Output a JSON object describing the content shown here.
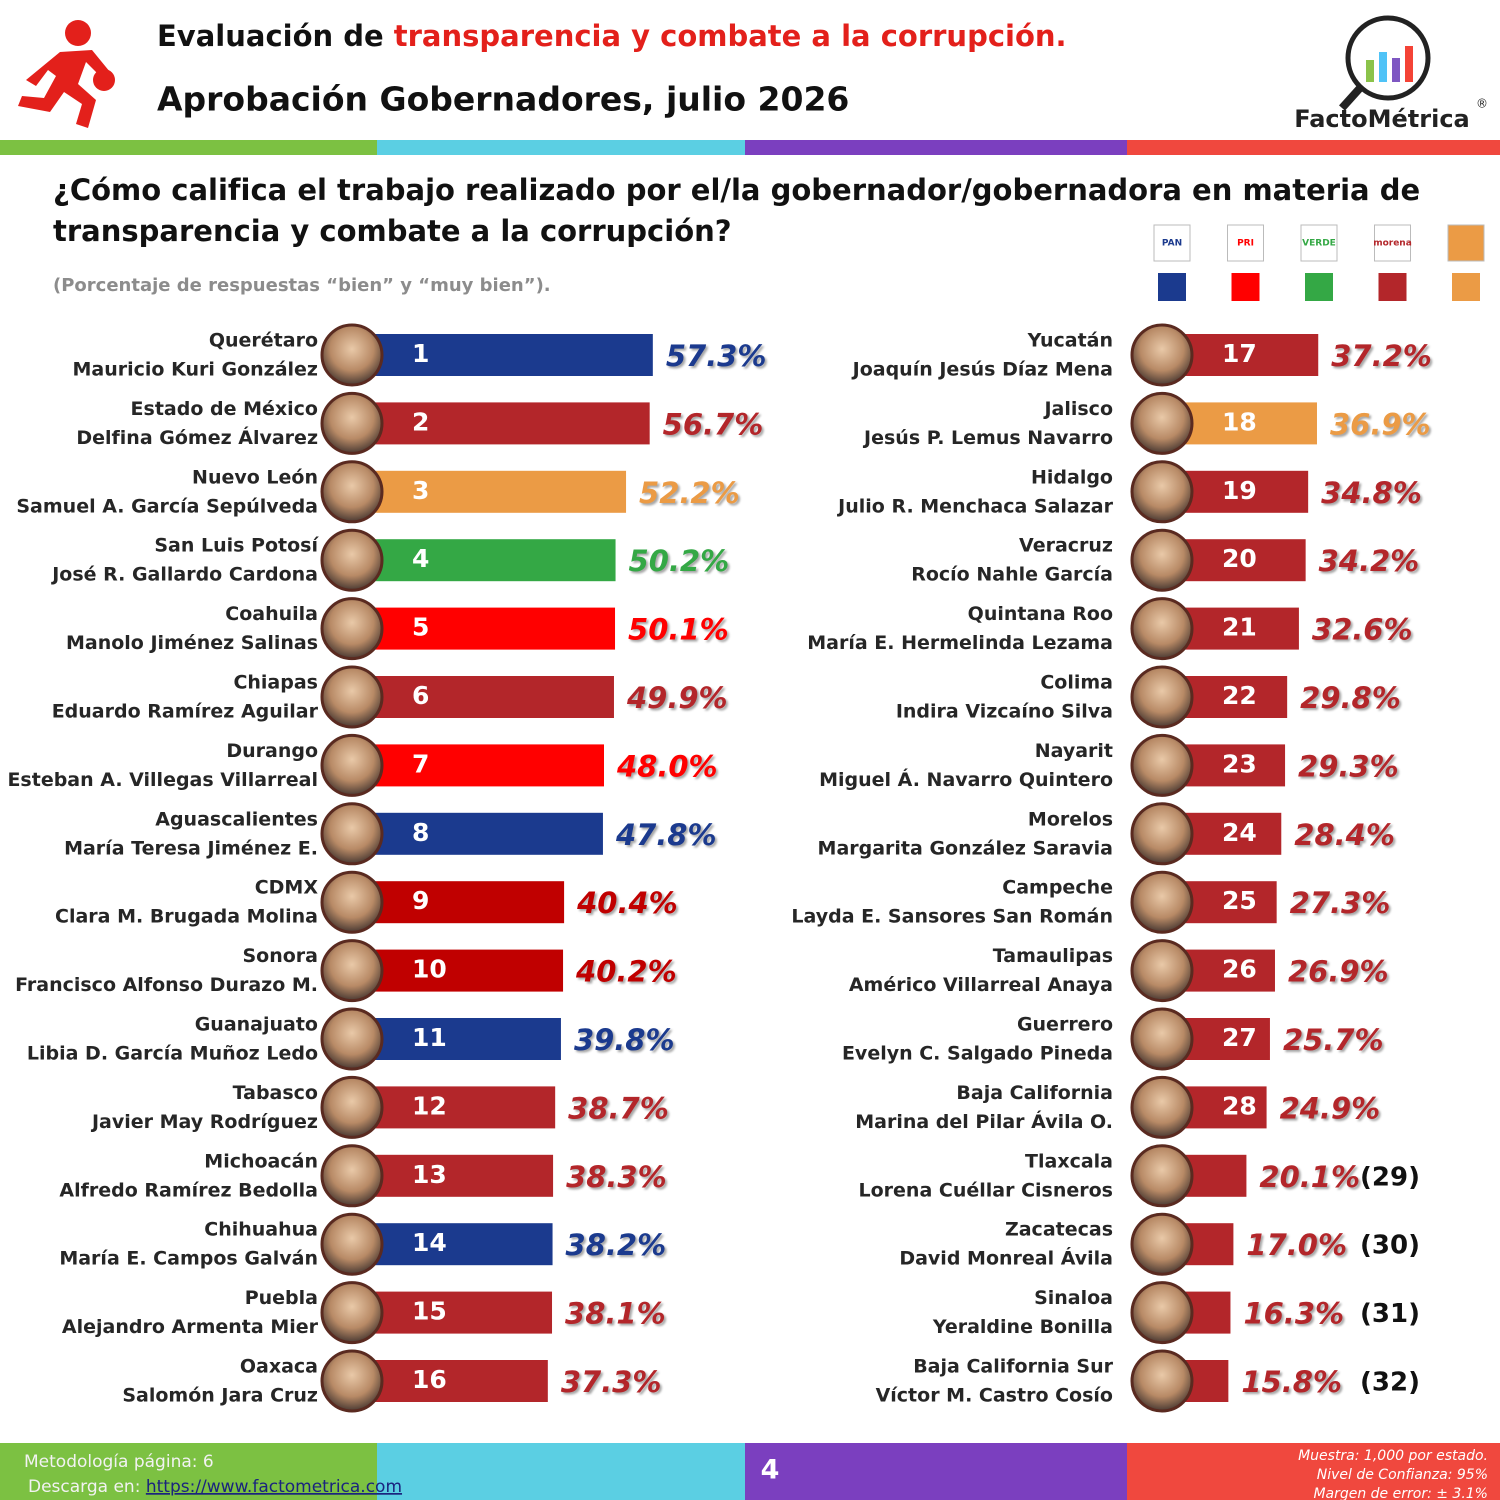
{
  "chart_data": {
    "type": "bar",
    "title": "Evaluación de ",
    "title_highlight": "transparencia y combate a la corrupción.",
    "subtitle": "Aprobación Gobernadores, julio 2026",
    "brand": "FactoMétrica",
    "brand_mark": "®",
    "question_lines": [
      "¿Cómo califica el trabajo realizado por el/la gobernador/gobernadora en materia de",
      "transparencia y combate a la corrupción?"
    ],
    "note": "(Porcentaje de respuestas “bien” y “muy bien”).",
    "legend": [
      {
        "label": "PAN",
        "color": "#1b3a8e"
      },
      {
        "label": "PRI",
        "color": "#ff0000"
      },
      {
        "label": "VERDE",
        "color": "#34a845"
      },
      {
        "label": "morena",
        "color": "#b3262a"
      },
      {
        "color": "#eb9b45"
      }
    ],
    "categories": [
      "Querétaro",
      "Estado de México",
      "Nuevo León",
      "San Luis Potosí",
      "Coahuila",
      "Chiapas",
      "Durango",
      "Aguascalientes",
      "CDMX",
      "Sonora",
      "Guanajuato",
      "Tabasco",
      "Michoacán",
      "Chihuahua",
      "Puebla",
      "Oaxaca",
      "Yucatán",
      "Jalisco",
      "Hidalgo",
      "Veracruz",
      "Quintana Roo",
      "Colima",
      "Nayarit",
      "Morelos",
      "Campeche",
      "Tamaulipas",
      "Guerrero",
      "Baja California",
      "Tlaxcala",
      "Zacatecas",
      "Sinaloa",
      "Baja California Sur"
    ],
    "governors": [
      "Mauricio Kuri González",
      "Delfina Gómez Álvarez",
      "Samuel A. García Sepúlveda",
      "José R. Gallardo Cardona",
      "Manolo Jiménez Salinas",
      "Eduardo Ramírez Aguilar",
      "Esteban A. Villegas Villarreal",
      "María Teresa Jiménez E.",
      "Clara M. Brugada Molina",
      "Francisco Alfonso Durazo M.",
      "Libia D. García Muñoz Ledo",
      "Javier May Rodríguez",
      "Alfredo Ramírez Bedolla",
      "María E. Campos Galván",
      "Alejandro Armenta Mier",
      "Salomón Jara Cruz",
      "Joaquín Jesús Díaz Mena",
      "Jesús P. Lemus Navarro",
      "Julio R. Menchaca Salazar",
      "Rocío Nahle García",
      "María E. Hermelinda Lezama",
      "Indira Vizcaíno Silva",
      "Miguel Á. Navarro Quintero",
      "Margarita González Saravia",
      "Layda E. Sansores San Román",
      "Américo Villarreal Anaya",
      "Evelyn C. Salgado Pineda",
      "Marina del Pilar Ávila O.",
      "Lorena Cuéllar Cisneros",
      "David Monreal Ávila",
      "Yeraldine Bonilla",
      "Víctor M. Castro Cosío"
    ],
    "ranks": [
      1,
      2,
      3,
      4,
      5,
      6,
      7,
      8,
      9,
      10,
      11,
      12,
      13,
      14,
      15,
      16,
      17,
      18,
      19,
      20,
      21,
      22,
      23,
      24,
      25,
      26,
      27,
      28,
      {
        "value": 29,
        "label": "(29)"
      },
      {
        "value": 30,
        "label": "(30)"
      },
      {
        "value": 31,
        "label": "(31)"
      },
      {
        "value": 32,
        "label": "(32)"
      }
    ],
    "values": [
      57.3,
      56.7,
      52.2,
      50.2,
      50.1,
      49.9,
      48.0,
      47.8,
      40.4,
      40.2,
      39.8,
      38.7,
      38.3,
      38.2,
      38.1,
      37.3,
      37.2,
      36.9,
      34.8,
      34.2,
      32.6,
      29.8,
      29.3,
      28.4,
      27.3,
      26.9,
      25.7,
      24.9,
      20.1,
      17.0,
      16.3,
      15.8
    ],
    "value_labels": [
      "57.3%",
      "56.7%",
      "52.2%",
      "50.2%",
      "50.1%",
      "49.9%",
      "48.0%",
      "47.8%",
      "40.4%",
      "40.2%",
      "39.8%",
      "38.7%",
      "38.3%",
      "38.2%",
      "38.1%",
      "37.3%",
      "37.2%",
      "36.9%",
      "34.8%",
      "34.2%",
      "32.6%",
      "29.8%",
      "29.3%",
      "28.4%",
      "27.3%",
      "26.9%",
      "25.7%",
      "24.9%",
      "20.1%",
      "17.0%",
      "16.3%",
      "15.8%"
    ],
    "colors": [
      "#1b3a8e",
      "#b3262a",
      "#eb9b45",
      "#34a845",
      "#ff0000",
      "#b3262a",
      "#ff0000",
      "#1b3a8e",
      "#c00000",
      "#c00000",
      "#1b3a8e",
      "#b3262a",
      "#b3262a",
      "#1b3a8e",
      "#b3262a",
      "#b3262a",
      "#b3262a",
      "#eb9b45",
      "#b3262a",
      "#b3262a",
      "#b3262a",
      "#b3262a",
      "#b3262a",
      "#b3262a",
      "#b3262a",
      "#b3262a",
      "#b3262a",
      "#b3262a",
      "#b3262a",
      "#b3262a",
      "#b3262a",
      "#b3262a"
    ],
    "footer": {
      "methodology": "Metodología página: 6",
      "download": "Descarga en: ",
      "url": "https://www.factometrica.com",
      "page": "4",
      "sample": "Muestra:  1,000 por estado.",
      "confidence": "Nivel de Confianza: 95%",
      "error": "Margen de error: ± 3.1%"
    }
  }
}
